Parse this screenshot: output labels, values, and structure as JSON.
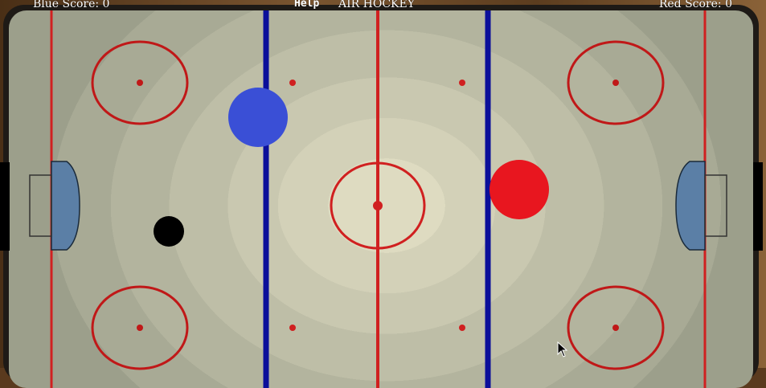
{
  "hud": {
    "blue_score_text": "Blue Score: 0",
    "red_score_text": "Red Score: 0",
    "help_label": "Help",
    "title": "AIR HOCKEY"
  },
  "colors": {
    "blue_paddle": "#3a4fd6",
    "red_paddle": "#e8161f",
    "puck": "#000000",
    "rink_line_red": "#d02020",
    "rink_line_blue": "#0b0f9a",
    "goal_crease": "#5b7fa6"
  },
  "icons": {
    "cursor": "mouse-pointer-icon"
  }
}
